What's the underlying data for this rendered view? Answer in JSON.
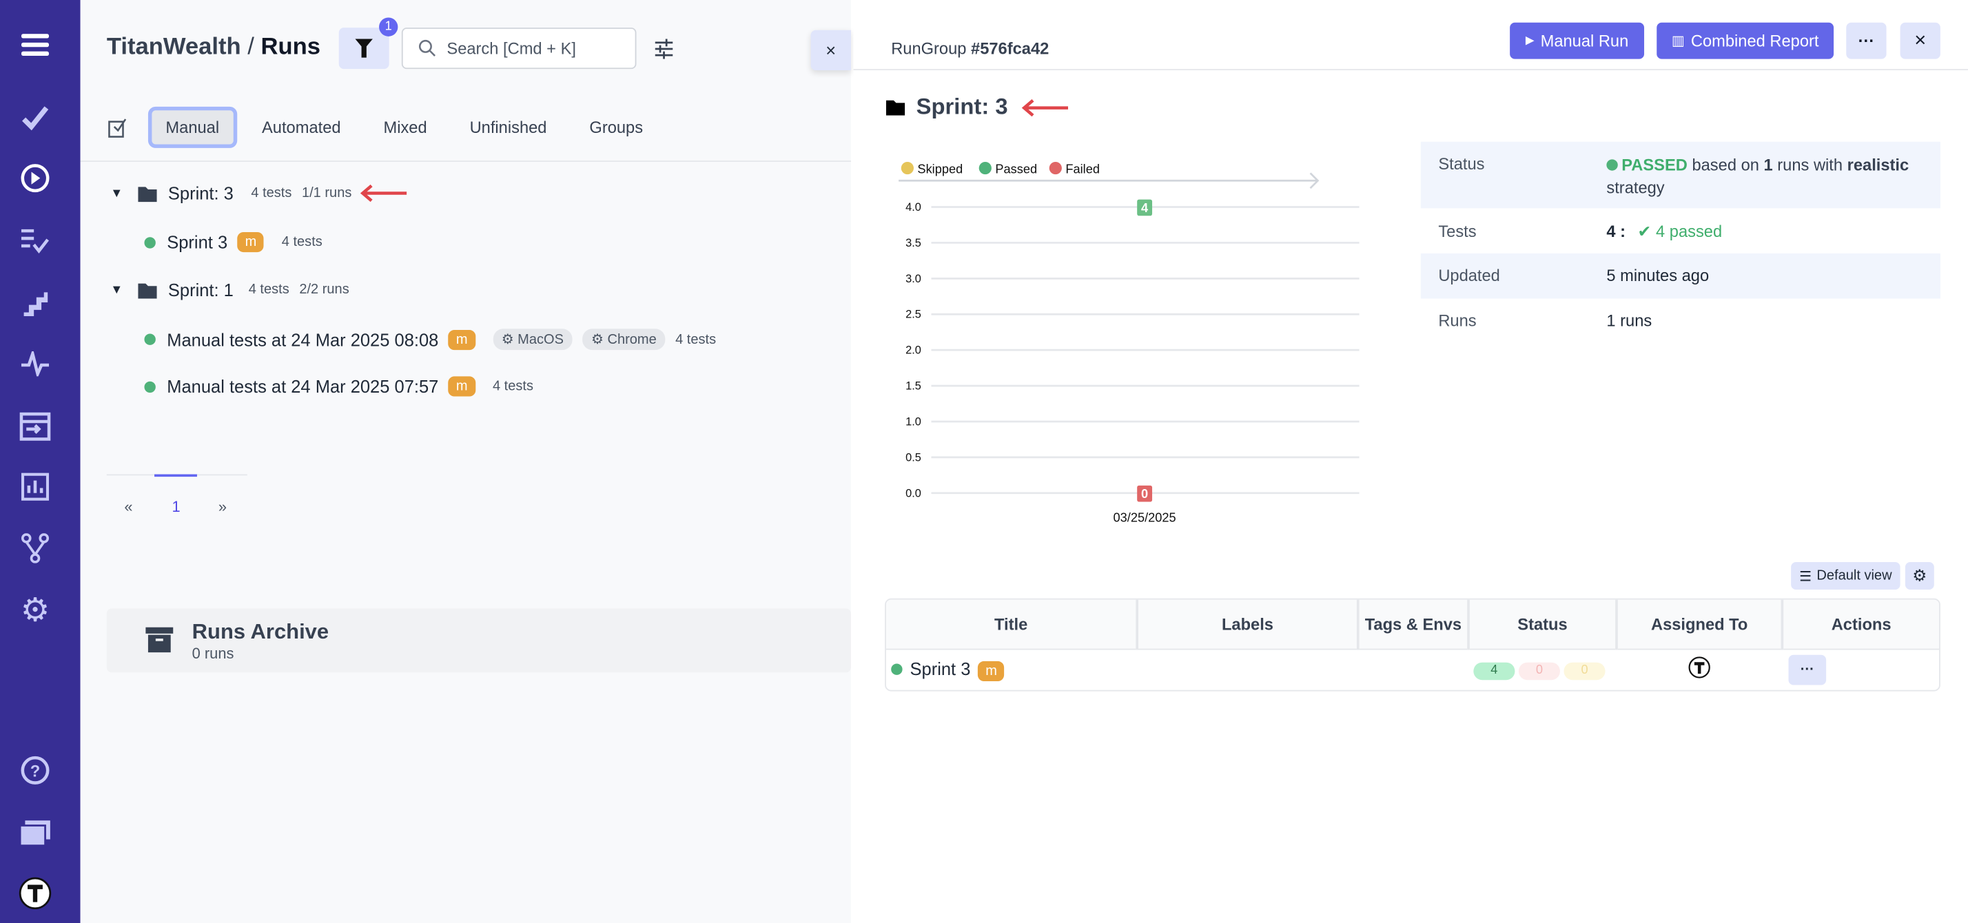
{
  "sidebar": {
    "items": [
      "menu-icon",
      "check-icon",
      "play-circle-icon",
      "list-check-icon",
      "stairs-icon",
      "pulse-icon",
      "import-icon",
      "bar-chart-icon",
      "branch-icon",
      "gear-icon",
      "help-icon",
      "folders-icon",
      "avatar"
    ]
  },
  "header": {
    "project": "TitanWealth",
    "separator": "/",
    "page": "Runs",
    "filter_count": "1",
    "search_placeholder": "Search [Cmd + K]"
  },
  "tabs": [
    {
      "label": "Manual",
      "active": true
    },
    {
      "label": "Automated"
    },
    {
      "label": "Mixed"
    },
    {
      "label": "Unfinished"
    },
    {
      "label": "Groups"
    }
  ],
  "tree": [
    {
      "title": "Sprint: 3",
      "tests": "4 tests",
      "runs": "1/1 runs",
      "children": [
        {
          "title": "Sprint 3",
          "badge": "m",
          "tests": "4 tests"
        }
      ]
    },
    {
      "title": "Sprint: 1",
      "tests": "4 tests",
      "runs": "2/2 runs",
      "children": [
        {
          "title": "Manual tests at 24 Mar 2025 08:08",
          "badge": "m",
          "envs": [
            "MacOS",
            "Chrome"
          ],
          "tests": "4 tests"
        },
        {
          "title": "Manual tests at 24 Mar 2025 07:57",
          "badge": "m",
          "tests": "4 tests"
        }
      ]
    }
  ],
  "pagination": {
    "prev": "«",
    "page": "1",
    "next": "»"
  },
  "archive": {
    "title": "Runs Archive",
    "count": "0 runs"
  },
  "detail": {
    "rungroup_label": "RunGroup",
    "rungroup_id": "#576fca42",
    "manual_run": "Manual Run",
    "combined_report": "Combined Report",
    "more": "···",
    "close": "×",
    "title": "Sprint: 3",
    "info": {
      "status_label": "Status",
      "status_value": "PASSED",
      "status_text1": "based on",
      "status_runs": "1",
      "status_text2": "runs with",
      "status_strategy": "realistic",
      "status_text3": "strategy",
      "tests_label": "Tests",
      "tests_total": "4 :",
      "tests_passed": "4 passed",
      "updated_label": "Updated",
      "updated_value": "5 minutes ago",
      "runs_label": "Runs",
      "runs_value": "1 runs"
    },
    "default_view": "Default view",
    "table": {
      "headers": [
        "Title",
        "Labels",
        "Tags & Envs",
        "Status",
        "Assigned To",
        "Actions"
      ],
      "rows": [
        {
          "title": "Sprint 3",
          "badge": "m",
          "passed": "4",
          "failed": "0",
          "skipped": "0",
          "actions": "···"
        }
      ]
    }
  },
  "colors": {
    "sidebar": "#372e94",
    "primary": "#6366e8",
    "passed": "#4fb27a",
    "failed": "#e06666",
    "skipped": "#e6c55a",
    "manual_badge": "#e9a23b"
  },
  "chart_data": {
    "type": "line",
    "categories": [
      "03/25/2025"
    ],
    "legend": [
      "Skipped",
      "Passed",
      "Failed"
    ],
    "legend_placement": "top-left",
    "series": [
      {
        "name": "Passed",
        "values": [
          4
        ],
        "color": "#6bbf85"
      },
      {
        "name": "Failed",
        "values": [
          0
        ],
        "color": "#e06666"
      }
    ],
    "ylim": [
      0,
      4
    ],
    "yticks": [
      "0.0",
      "0.5",
      "1.0",
      "1.5",
      "2.0",
      "2.5",
      "3.0",
      "3.5",
      "4.0"
    ],
    "grid": true
  }
}
